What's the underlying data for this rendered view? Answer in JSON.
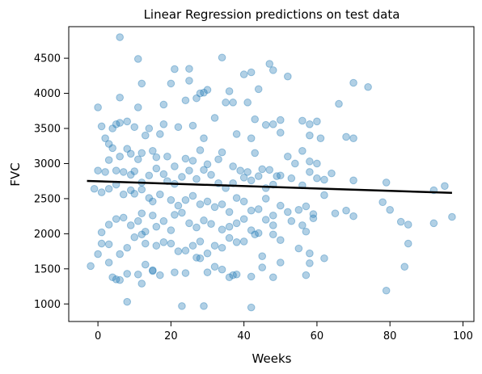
{
  "chart_data": {
    "type": "scatter",
    "title": "Linear Regression predictions on test data",
    "xlabel": "Weeks",
    "ylabel": "FVC",
    "xlim": [
      -8,
      103
    ],
    "ylim": [
      750,
      4950
    ],
    "xticks": [
      0,
      20,
      40,
      60,
      80,
      100
    ],
    "yticks": [
      1000,
      1500,
      2000,
      2500,
      3000,
      3500,
      4000,
      4500
    ],
    "grid": false,
    "legend": "none",
    "colors": {
      "points": "#1f77b4",
      "line": "#000000"
    },
    "regression_line": {
      "x": [
        -3,
        97
      ],
      "y": [
        2752,
        2582
      ]
    },
    "points": [
      [
        6,
        4800
      ],
      [
        11,
        4490
      ],
      [
        21,
        4345
      ],
      [
        25,
        4350
      ],
      [
        34,
        4510
      ],
      [
        40,
        4270
      ],
      [
        42,
        4300
      ],
      [
        47,
        4420
      ],
      [
        48,
        4330
      ],
      [
        52,
        4240
      ],
      [
        70,
        4150
      ],
      [
        74,
        4090
      ],
      [
        20,
        4140
      ],
      [
        28,
        4000
      ],
      [
        30,
        4050
      ],
      [
        25,
        4180
      ],
      [
        36,
        4030
      ],
      [
        44,
        4060
      ],
      [
        12,
        4140
      ],
      [
        0,
        3800
      ],
      [
        6,
        3940
      ],
      [
        11,
        3800
      ],
      [
        18,
        3840
      ],
      [
        24,
        3900
      ],
      [
        27,
        3930
      ],
      [
        29,
        4010
      ],
      [
        35,
        3870
      ],
      [
        37,
        3870
      ],
      [
        41,
        3870
      ],
      [
        66,
        3850
      ],
      [
        1,
        3530
      ],
      [
        4,
        3500
      ],
      [
        5,
        3560
      ],
      [
        6,
        3580
      ],
      [
        8,
        3600
      ],
      [
        10,
        3520
      ],
      [
        13,
        3400
      ],
      [
        14,
        3500
      ],
      [
        17,
        3420
      ],
      [
        18,
        3560
      ],
      [
        22,
        3520
      ],
      [
        26,
        3540
      ],
      [
        29,
        3360
      ],
      [
        32,
        3650
      ],
      [
        38,
        3420
      ],
      [
        42,
        3360
      ],
      [
        43,
        3630
      ],
      [
        46,
        3550
      ],
      [
        48,
        3560
      ],
      [
        50,
        3620
      ],
      [
        50,
        3440
      ],
      [
        56,
        3610
      ],
      [
        58,
        3560
      ],
      [
        60,
        3600
      ],
      [
        58,
        3400
      ],
      [
        61,
        3360
      ],
      [
        68,
        3380
      ],
      [
        70,
        3360
      ],
      [
        2,
        3360
      ],
      [
        3,
        3280
      ],
      [
        4,
        3220
      ],
      [
        6,
        3100
      ],
      [
        8,
        3210
      ],
      [
        9,
        3140
      ],
      [
        11,
        3060
      ],
      [
        12,
        3150
      ],
      [
        15,
        3180
      ],
      [
        16,
        3090
      ],
      [
        19,
        3100
      ],
      [
        21,
        2960
      ],
      [
        24,
        3070
      ],
      [
        26,
        3040
      ],
      [
        28,
        3190
      ],
      [
        30,
        2990
      ],
      [
        33,
        3060
      ],
      [
        34,
        3160
      ],
      [
        37,
        2960
      ],
      [
        39,
        2900
      ],
      [
        41,
        2880
      ],
      [
        43,
        3150
      ],
      [
        45,
        2920
      ],
      [
        47,
        2910
      ],
      [
        49,
        2820
      ],
      [
        52,
        3100
      ],
      [
        54,
        3000
      ],
      [
        56,
        3180
      ],
      [
        58,
        3030
      ],
      [
        60,
        3000
      ],
      [
        0,
        2900
      ],
      [
        2,
        2880
      ],
      [
        3,
        3050
      ],
      [
        5,
        2900
      ],
      [
        7,
        2880
      ],
      [
        9,
        2840
      ],
      [
        10,
        2890
      ],
      [
        12,
        2730
      ],
      [
        14,
        2830
      ],
      [
        16,
        2930
      ],
      [
        18,
        2850
      ],
      [
        19,
        2750
      ],
      [
        21,
        2710
      ],
      [
        23,
        2810
      ],
      [
        25,
        2900
      ],
      [
        27,
        2780
      ],
      [
        29,
        2910
      ],
      [
        31,
        2840
      ],
      [
        33,
        2720
      ],
      [
        35,
        2650
      ],
      [
        37,
        2720
      ],
      [
        40,
        2800
      ],
      [
        42,
        2760
      ],
      [
        44,
        2820
      ],
      [
        46,
        2650
      ],
      [
        48,
        2700
      ],
      [
        50,
        2830
      ],
      [
        53,
        2790
      ],
      [
        56,
        2690
      ],
      [
        58,
        2880
      ],
      [
        60,
        2790
      ],
      [
        62,
        2770
      ],
      [
        64,
        2860
      ],
      [
        70,
        2760
      ],
      [
        79,
        2730
      ],
      [
        92,
        2620
      ],
      [
        95,
        2680
      ],
      [
        -1,
        2640
      ],
      [
        1,
        2590
      ],
      [
        3,
        2640
      ],
      [
        5,
        2700
      ],
      [
        7,
        2560
      ],
      [
        9,
        2620
      ],
      [
        10,
        2570
      ],
      [
        12,
        2630
      ],
      [
        14,
        2510
      ],
      [
        15,
        2460
      ],
      [
        17,
        2560
      ],
      [
        20,
        2480
      ],
      [
        22,
        2400
      ],
      [
        24,
        2480
      ],
      [
        26,
        2540
      ],
      [
        28,
        2420
      ],
      [
        30,
        2460
      ],
      [
        32,
        2380
      ],
      [
        34,
        2420
      ],
      [
        36,
        2310
      ],
      [
        38,
        2510
      ],
      [
        40,
        2460
      ],
      [
        42,
        2330
      ],
      [
        44,
        2350
      ],
      [
        46,
        2500
      ],
      [
        48,
        2260
      ],
      [
        50,
        2400
      ],
      [
        52,
        2310
      ],
      [
        55,
        2340
      ],
      [
        57,
        2390
      ],
      [
        59,
        2280
      ],
      [
        62,
        2550
      ],
      [
        65,
        2290
      ],
      [
        68,
        2330
      ],
      [
        70,
        2250
      ],
      [
        78,
        2450
      ],
      [
        80,
        2340
      ],
      [
        83,
        2170
      ],
      [
        85,
        2130
      ],
      [
        92,
        2150
      ],
      [
        97,
        2240
      ],
      [
        1,
        2020
      ],
      [
        3,
        2130
      ],
      [
        5,
        2210
      ],
      [
        7,
        2230
      ],
      [
        9,
        2120
      ],
      [
        11,
        2180
      ],
      [
        12,
        2290
      ],
      [
        13,
        2030
      ],
      [
        15,
        2260
      ],
      [
        16,
        2100
      ],
      [
        18,
        2180
      ],
      [
        20,
        2050
      ],
      [
        21,
        2270
      ],
      [
        23,
        2300
      ],
      [
        25,
        2150
      ],
      [
        27,
        2090
      ],
      [
        29,
        2190
      ],
      [
        31,
        2140
      ],
      [
        34,
        2060
      ],
      [
        36,
        2100
      ],
      [
        38,
        2150
      ],
      [
        40,
        2210
      ],
      [
        42,
        2050
      ],
      [
        44,
        2010
      ],
      [
        46,
        2200
      ],
      [
        48,
        2120
      ],
      [
        50,
        1910
      ],
      [
        53,
        2180
      ],
      [
        56,
        2120
      ],
      [
        57,
        2030
      ],
      [
        59,
        2220
      ],
      [
        1,
        1860
      ],
      [
        3,
        1850
      ],
      [
        6,
        1710
      ],
      [
        8,
        1800
      ],
      [
        10,
        1950
      ],
      [
        12,
        1990
      ],
      [
        13,
        1860
      ],
      [
        16,
        1830
      ],
      [
        18,
        1880
      ],
      [
        20,
        1860
      ],
      [
        22,
        1750
      ],
      [
        24,
        1760
      ],
      [
        26,
        1830
      ],
      [
        28,
        1890
      ],
      [
        30,
        1720
      ],
      [
        32,
        1830
      ],
      [
        34,
        1800
      ],
      [
        36,
        1940
      ],
      [
        38,
        1880
      ],
      [
        40,
        1890
      ],
      [
        43,
        1990
      ],
      [
        45,
        1680
      ],
      [
        48,
        1990
      ],
      [
        50,
        1590
      ],
      [
        55,
        1790
      ],
      [
        58,
        1720
      ],
      [
        62,
        1650
      ],
      [
        85,
        1860
      ],
      [
        84,
        1530
      ],
      [
        -2,
        1540
      ],
      [
        0,
        1710
      ],
      [
        3,
        1590
      ],
      [
        4,
        1380
      ],
      [
        5,
        1350
      ],
      [
        6,
        1340
      ],
      [
        8,
        1430
      ],
      [
        11,
        1420
      ],
      [
        12,
        1290
      ],
      [
        13,
        1560
      ],
      [
        15,
        1480
      ],
      [
        17,
        1410
      ],
      [
        21,
        1450
      ],
      [
        24,
        1440
      ],
      [
        27,
        1660
      ],
      [
        28,
        1650
      ],
      [
        30,
        1450
      ],
      [
        32,
        1530
      ],
      [
        34,
        1490
      ],
      [
        36,
        1380
      ],
      [
        37,
        1410
      ],
      [
        38,
        1420
      ],
      [
        42,
        1390
      ],
      [
        45,
        1520
      ],
      [
        48,
        1380
      ],
      [
        58,
        1580
      ],
      [
        57,
        1410
      ],
      [
        8,
        1030
      ],
      [
        23,
        970
      ],
      [
        29,
        970
      ],
      [
        42,
        950
      ],
      [
        79,
        1190
      ],
      [
        15,
        1470
      ]
    ]
  }
}
